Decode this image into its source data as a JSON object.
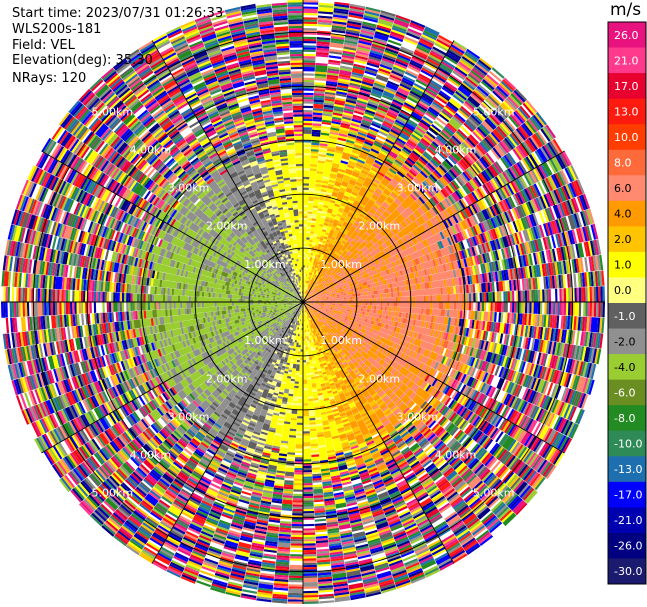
{
  "header": {
    "start_time": "Start time: 2023/07/31 01:26:33",
    "instrument": "WLS200s-181",
    "field": "Field: VEL",
    "elevation": "Elevation(deg): 35.30",
    "nrays": "NRays: 120"
  },
  "colorbar": {
    "unit": "m/s",
    "ticks": [
      "26.0",
      "21.0",
      "17.0",
      "13.0",
      "10.0",
      "8.0",
      "6.0",
      "4.0",
      "2.0",
      "1.0",
      "0.0",
      "-1.0",
      "-2.0",
      "-4.0",
      "-6.0",
      "-8.0",
      "-10.0",
      "-13.0",
      "-17.0",
      "-21.0",
      "-26.0",
      "-30.0"
    ],
    "colors": [
      "#e8137f",
      "#ff3a8c",
      "#e8002e",
      "#ff1a10",
      "#ff3d00",
      "#ff6a3a",
      "#ff8a70",
      "#ff9a00",
      "#ffc400",
      "#ffff00",
      "#ffff80",
      "#606060",
      "#909090",
      "#9acd32",
      "#6b8e23",
      "#228b22",
      "#2e8b57",
      "#1e6fb0",
      "#0000ff",
      "#0000b0",
      "#000080",
      "#1a1a6e"
    ]
  },
  "chart_data": {
    "type": "heatmap",
    "subtype": "PPI polar scan",
    "field": "VEL",
    "unit": "m/s",
    "nrays": 120,
    "elevation_deg": 35.3,
    "range_rings": [
      {
        "label": "1.00km",
        "range_km": 1.0
      },
      {
        "label": "2.00km",
        "range_km": 2.0
      },
      {
        "label": "3.00km",
        "range_km": 3.0
      },
      {
        "label": "4.00km",
        "range_km": 4.0
      },
      {
        "label": "5.00km",
        "range_km": 5.0
      }
    ],
    "max_range_km": 5.6,
    "vmin": -30.0,
    "vmax": 30.0,
    "valid_range_km": 3.1,
    "pattern": "positive velocities (yellow, about +1 to +6 m/s) to the east, negative velocities (green, about -2 to -6 m/s) to the west, noisy values beyond about 3 km"
  }
}
